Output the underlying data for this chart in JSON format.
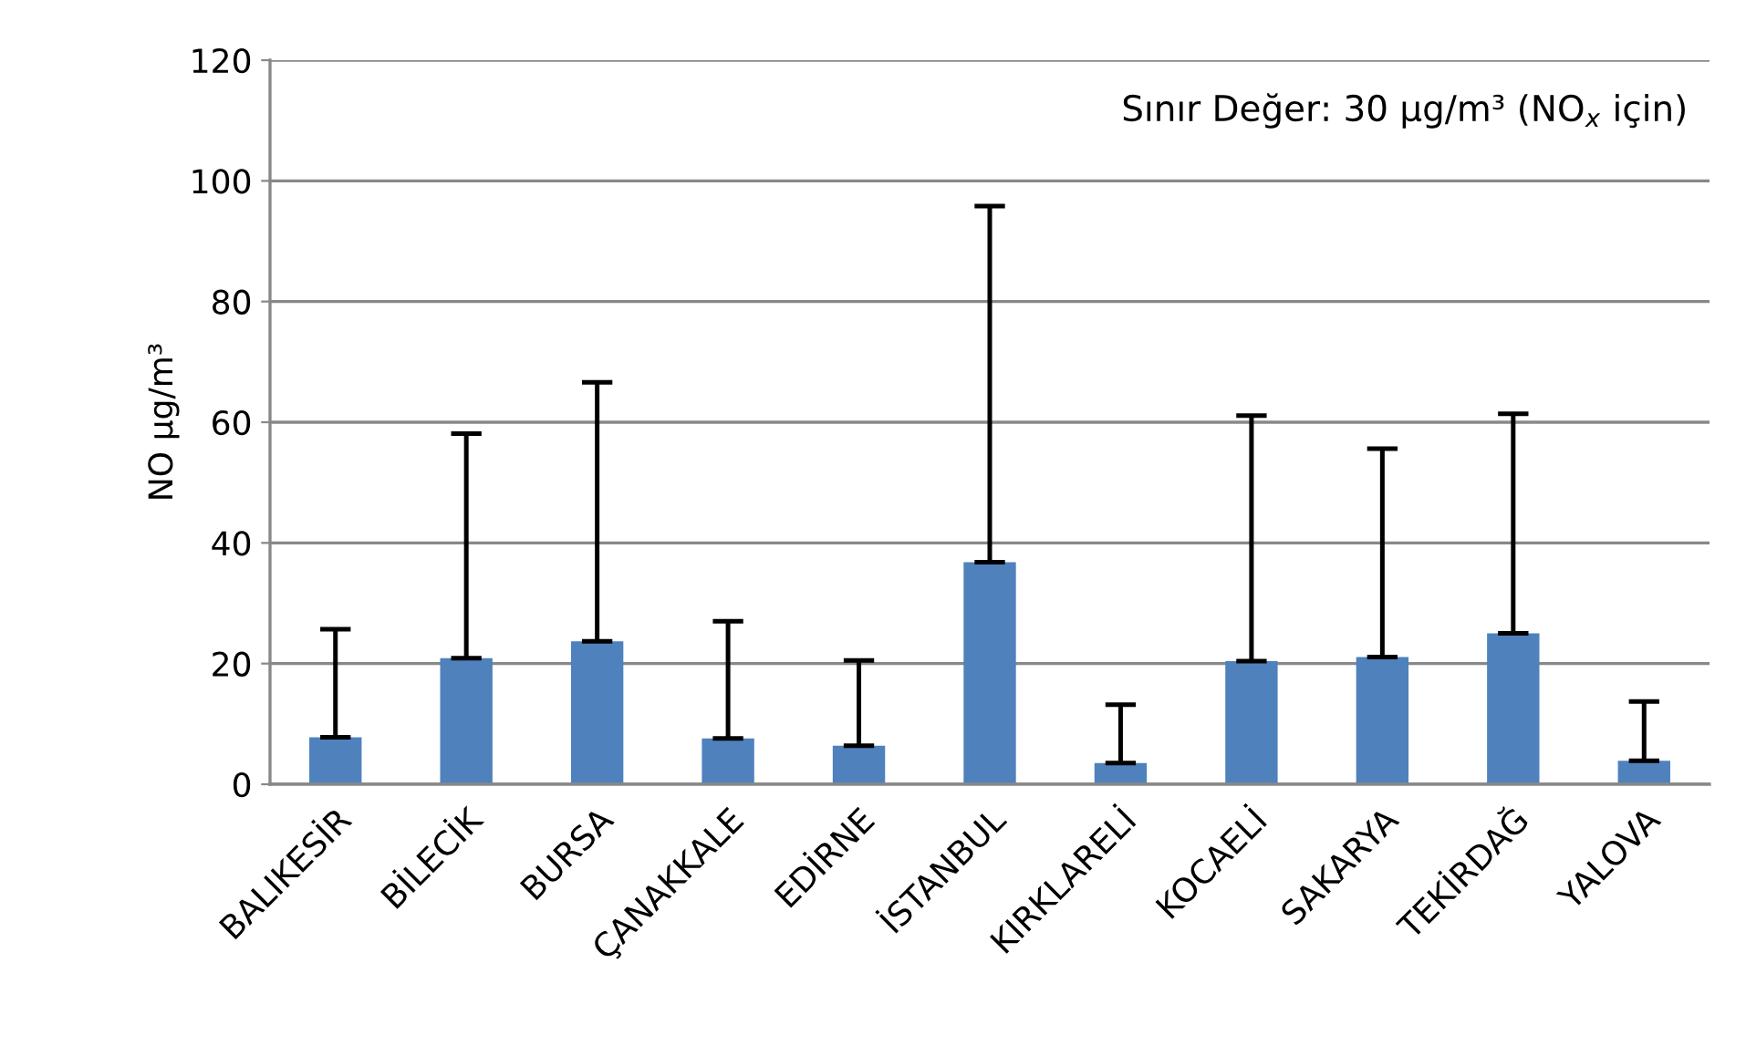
{
  "chart_data": {
    "type": "bar",
    "ylabel": "NO µg/m³",
    "categories": [
      "BALIKESİR",
      "BİLECİK",
      "BURSA",
      "ÇANAKKALE",
      "EDİRNE",
      "İSTANBUL",
      "KIRKLARELİ",
      "KOCAELİ",
      "SAKARYA",
      "TEKİRDAĞ",
      "YALOVA"
    ],
    "values": [
      7.8,
      20.9,
      23.7,
      7.6,
      6.4,
      36.8,
      3.5,
      20.4,
      21.1,
      25.0,
      3.9
    ],
    "errors": [
      [
        7.8,
        25.7
      ],
      [
        20.9,
        58.1
      ],
      [
        23.7,
        66.6
      ],
      [
        7.6,
        27.0
      ],
      [
        6.4,
        20.5
      ],
      [
        36.8,
        95.8
      ],
      [
        3.5,
        13.2
      ],
      [
        20.4,
        61.1
      ],
      [
        21.1,
        55.6
      ],
      [
        25.0,
        61.4
      ],
      [
        3.9,
        13.7
      ]
    ],
    "color": "#4f81bd",
    "ylim": [
      0,
      120
    ],
    "yticks": [
      0,
      20,
      40,
      60,
      80,
      100,
      120
    ],
    "grid": "y",
    "annotations": [
      "Sınır Değer: 30 µg/m³ (NO$_{x}$ için)"
    ]
  }
}
